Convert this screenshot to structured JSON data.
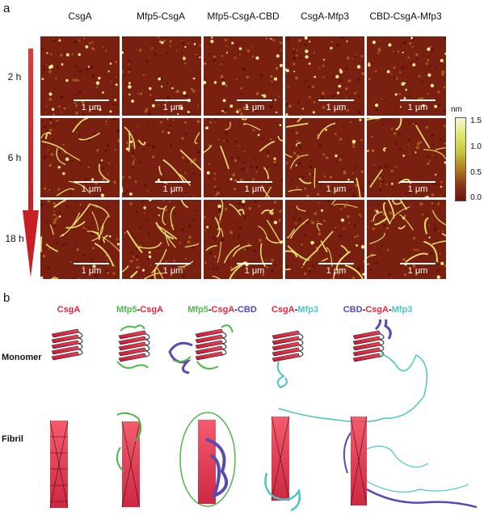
{
  "panel_a": {
    "letter": "a",
    "columns": [
      "CsgA",
      "Mfp5-CsgA",
      "Mfp5-CsgA-CBD",
      "CsgA-Mfp3",
      "CBD-CsgA-Mfp3"
    ],
    "rows": [
      "2 h",
      "6 h",
      "18 h"
    ],
    "scale_bar_label": "1 μm",
    "colorbar": {
      "unit": "nm",
      "ticks": [
        "1.5",
        "1.0",
        "0.5",
        "0.0"
      ]
    },
    "colors": {
      "afm_base": "#7a2010",
      "fiber": "#e8e070",
      "arrow": "#d7262a"
    }
  },
  "panel_b": {
    "letter": "b",
    "row_labels": [
      "Monomer",
      "Fibril"
    ],
    "constructs": [
      [
        {
          "text": "CsgA",
          "color": "#e8253f"
        }
      ],
      [
        {
          "text": "Mfp5",
          "color": "#4db848"
        },
        {
          "text": "-",
          "color": "#111111"
        },
        {
          "text": "CsgA",
          "color": "#e8253f"
        }
      ],
      [
        {
          "text": "Mfp5",
          "color": "#4db848"
        },
        {
          "text": "-",
          "color": "#111111"
        },
        {
          "text": "CsgA",
          "color": "#e8253f"
        },
        {
          "text": "-",
          "color": "#111111"
        },
        {
          "text": "CBD",
          "color": "#5b49b3"
        }
      ],
      [
        {
          "text": "CsgA",
          "color": "#e8253f"
        },
        {
          "text": "-",
          "color": "#111111"
        },
        {
          "text": "Mfp3",
          "color": "#4cc4c4"
        }
      ],
      [
        {
          "text": "CBD",
          "color": "#5b49b3"
        },
        {
          "text": "-",
          "color": "#111111"
        },
        {
          "text": "CsgA",
          "color": "#e8253f"
        },
        {
          "text": "-",
          "color": "#111111"
        },
        {
          "text": "Mfp3",
          "color": "#4cc4c4"
        }
      ]
    ],
    "colors": {
      "csga": "#e8253f",
      "mfp5": "#4db848",
      "cbd": "#5b49b3",
      "mfp3": "#4cc4c4"
    }
  }
}
